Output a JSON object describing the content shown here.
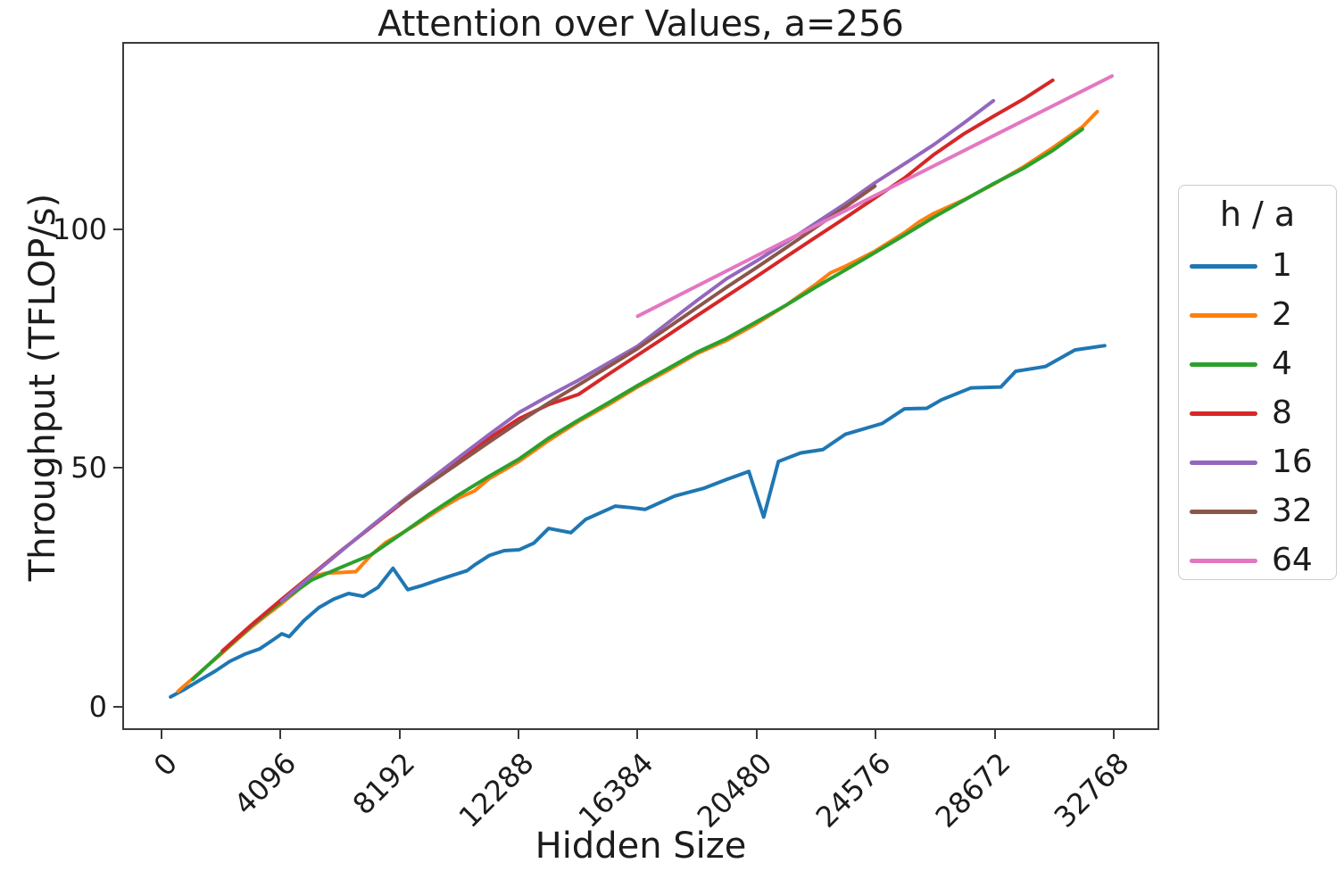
{
  "figure": {
    "title": "Attention over Values, a=256",
    "xlabel": "Hidden Size",
    "ylabel": "Throughput (TFLOP/s)"
  },
  "legend": {
    "title": "h / a",
    "entries": [
      {
        "label": "1",
        "color": "#1f77b4"
      },
      {
        "label": "2",
        "color": "#ff7f0e"
      },
      {
        "label": "4",
        "color": "#2ca02c"
      },
      {
        "label": "8",
        "color": "#d62728"
      },
      {
        "label": "16",
        "color": "#9467bd"
      },
      {
        "label": "32",
        "color": "#8c564b"
      },
      {
        "label": "64",
        "color": "#e377c2"
      }
    ]
  },
  "chart_data": {
    "type": "line",
    "title": "Attention over Values, a=256",
    "xlabel": "Hidden Size",
    "ylabel": "Throughput (TFLOP/s)",
    "xlim": [
      -1351,
      34337
    ],
    "ylim": [
      -4.9,
      139.3
    ],
    "xticks": [
      0,
      4096,
      8192,
      12288,
      16384,
      20480,
      24576,
      28672,
      32768
    ],
    "yticks": [
      0,
      50,
      100
    ],
    "grid": false,
    "legend_title": "h / a",
    "legend_position": "outside-right",
    "line_width": 4,
    "series": [
      {
        "name": "1",
        "color": "#1f77b4",
        "points": [
          [
            256,
            1.7
          ],
          [
            768,
            3.4
          ],
          [
            1280,
            5.3
          ],
          [
            1792,
            7.1
          ],
          [
            2304,
            9.2
          ],
          [
            2816,
            10.7
          ],
          [
            3328,
            11.8
          ],
          [
            3840,
            13.9
          ],
          [
            4096,
            15.0
          ],
          [
            4352,
            14.4
          ],
          [
            4864,
            17.8
          ],
          [
            5376,
            20.5
          ],
          [
            5888,
            22.3
          ],
          [
            6400,
            23.5
          ],
          [
            6912,
            22.9
          ],
          [
            7424,
            24.8
          ],
          [
            7936,
            28.8
          ],
          [
            8448,
            24.3
          ],
          [
            8960,
            25.2
          ],
          [
            9472,
            26.3
          ],
          [
            9984,
            27.3
          ],
          [
            10496,
            28.3
          ],
          [
            10752,
            29.5
          ],
          [
            11264,
            31.5
          ],
          [
            11776,
            32.5
          ],
          [
            12288,
            32.7
          ],
          [
            12800,
            34.1
          ],
          [
            13312,
            37.2
          ],
          [
            14080,
            36.3
          ],
          [
            14592,
            39.1
          ],
          [
            15616,
            41.9
          ],
          [
            16128,
            41.6
          ],
          [
            16640,
            41.2
          ],
          [
            17664,
            44.0
          ],
          [
            18688,
            45.7
          ],
          [
            19456,
            47.5
          ],
          [
            20224,
            49.2
          ],
          [
            20736,
            39.6
          ],
          [
            21248,
            51.3
          ],
          [
            22016,
            53.1
          ],
          [
            22784,
            53.8
          ],
          [
            23552,
            57.0
          ],
          [
            24832,
            59.3
          ],
          [
            25600,
            62.4
          ],
          [
            26368,
            62.5
          ],
          [
            26880,
            64.3
          ],
          [
            27904,
            66.8
          ],
          [
            28928,
            67.0
          ],
          [
            29440,
            70.3
          ],
          [
            30464,
            71.3
          ],
          [
            31488,
            74.8
          ],
          [
            32512,
            75.7
          ]
        ]
      },
      {
        "name": "2",
        "color": "#ff7f0e",
        "points": [
          [
            512,
            2.9
          ],
          [
            1024,
            5.6
          ],
          [
            1536,
            8.3
          ],
          [
            2048,
            11.0
          ],
          [
            2560,
            13.8
          ],
          [
            3072,
            16.5
          ],
          [
            3584,
            19.0
          ],
          [
            4096,
            21.4
          ],
          [
            4608,
            24.0
          ],
          [
            5120,
            27.0
          ],
          [
            5632,
            27.8
          ],
          [
            6144,
            27.9
          ],
          [
            6656,
            28.1
          ],
          [
            7168,
            31.5
          ],
          [
            7680,
            34.2
          ],
          [
            8192,
            36.0
          ],
          [
            8704,
            37.9
          ],
          [
            9216,
            39.9
          ],
          [
            9728,
            41.9
          ],
          [
            10240,
            43.7
          ],
          [
            10752,
            45.1
          ],
          [
            11264,
            47.7
          ],
          [
            11776,
            49.5
          ],
          [
            12288,
            51.3
          ],
          [
            13312,
            55.7
          ],
          [
            14336,
            59.7
          ],
          [
            15360,
            63.2
          ],
          [
            16384,
            67.0
          ],
          [
            17408,
            70.4
          ],
          [
            18432,
            74.0
          ],
          [
            19456,
            76.8
          ],
          [
            20480,
            80.3
          ],
          [
            21504,
            84.2
          ],
          [
            22528,
            88.6
          ],
          [
            23040,
            91.0
          ],
          [
            23552,
            92.4
          ],
          [
            24576,
            95.6
          ],
          [
            25600,
            99.5
          ],
          [
            26112,
            101.8
          ],
          [
            26624,
            103.6
          ],
          [
            27648,
            106.4
          ],
          [
            28672,
            109.7
          ],
          [
            29696,
            113.3
          ],
          [
            30720,
            117.4
          ],
          [
            31744,
            121.8
          ],
          [
            32256,
            125.0
          ]
        ]
      },
      {
        "name": "4",
        "color": "#2ca02c",
        "points": [
          [
            1024,
            5.4
          ],
          [
            2048,
            11.2
          ],
          [
            3072,
            16.8
          ],
          [
            4096,
            21.8
          ],
          [
            5120,
            26.3
          ],
          [
            6144,
            29.0
          ],
          [
            7168,
            31.6
          ],
          [
            8192,
            35.9
          ],
          [
            9216,
            40.3
          ],
          [
            10240,
            44.4
          ],
          [
            11264,
            48.2
          ],
          [
            12288,
            51.8
          ],
          [
            13312,
            56.2
          ],
          [
            14336,
            60.0
          ],
          [
            15360,
            63.6
          ],
          [
            16384,
            67.3
          ],
          [
            17408,
            70.8
          ],
          [
            18432,
            74.3
          ],
          [
            19456,
            77.2
          ],
          [
            20480,
            80.7
          ],
          [
            21504,
            84.2
          ],
          [
            22528,
            88.0
          ],
          [
            23552,
            91.6
          ],
          [
            24576,
            95.3
          ],
          [
            25600,
            99.0
          ],
          [
            26624,
            102.8
          ],
          [
            27648,
            106.3
          ],
          [
            28672,
            109.8
          ],
          [
            29696,
            113.0
          ],
          [
            30720,
            116.8
          ],
          [
            31744,
            121.3
          ]
        ]
      },
      {
        "name": "8",
        "color": "#d62728",
        "points": [
          [
            2048,
            11.4
          ],
          [
            3072,
            17.0
          ],
          [
            4096,
            22.3
          ],
          [
            5120,
            27.4
          ],
          [
            6144,
            32.5
          ],
          [
            7168,
            37.4
          ],
          [
            8192,
            42.3
          ],
          [
            9216,
            47.1
          ],
          [
            10240,
            51.7
          ],
          [
            11264,
            56.2
          ],
          [
            12288,
            60.3
          ],
          [
            13312,
            63.3
          ],
          [
            14336,
            65.4
          ],
          [
            15360,
            69.6
          ],
          [
            16384,
            73.7
          ],
          [
            17408,
            77.8
          ],
          [
            18432,
            82.0
          ],
          [
            19456,
            86.1
          ],
          [
            20480,
            90.2
          ],
          [
            21504,
            94.4
          ],
          [
            22528,
            98.5
          ],
          [
            23552,
            102.6
          ],
          [
            24576,
            106.8
          ],
          [
            25600,
            111.0
          ],
          [
            26624,
            116.0
          ],
          [
            27648,
            120.3
          ],
          [
            28672,
            124.0
          ],
          [
            29696,
            127.6
          ],
          [
            30720,
            131.6
          ]
        ]
      },
      {
        "name": "16",
        "color": "#9467bd",
        "points": [
          [
            4096,
            21.9
          ],
          [
            5120,
            27.2
          ],
          [
            6144,
            32.4
          ],
          [
            7168,
            37.6
          ],
          [
            8192,
            42.6
          ],
          [
            9216,
            47.5
          ],
          [
            10240,
            52.3
          ],
          [
            11264,
            57.0
          ],
          [
            12288,
            61.6
          ],
          [
            13312,
            65.1
          ],
          [
            14336,
            68.4
          ],
          [
            15360,
            72.0
          ],
          [
            16384,
            75.6
          ],
          [
            17408,
            80.4
          ],
          [
            18432,
            85.2
          ],
          [
            19456,
            89.8
          ],
          [
            20480,
            93.5
          ],
          [
            21504,
            97.4
          ],
          [
            22528,
            101.5
          ],
          [
            23552,
            105.6
          ],
          [
            24576,
            110.0
          ],
          [
            25600,
            114.0
          ],
          [
            26624,
            118.1
          ],
          [
            27648,
            122.6
          ],
          [
            28672,
            127.3
          ]
        ]
      },
      {
        "name": "32",
        "color": "#8c564b",
        "points": [
          [
            8192,
            42.4
          ],
          [
            9216,
            46.8
          ],
          [
            10240,
            51.1
          ],
          [
            11264,
            55.4
          ],
          [
            12288,
            59.6
          ],
          [
            13312,
            63.6
          ],
          [
            14336,
            67.4
          ],
          [
            15360,
            71.2
          ],
          [
            16384,
            75.1
          ],
          [
            17408,
            79.4
          ],
          [
            18432,
            83.7
          ],
          [
            19456,
            88.0
          ],
          [
            20480,
            92.1
          ],
          [
            21504,
            96.3
          ],
          [
            22528,
            100.6
          ],
          [
            23552,
            104.9
          ],
          [
            24576,
            109.3
          ]
        ]
      },
      {
        "name": "64",
        "color": "#e377c2",
        "points": [
          [
            16384,
            81.9
          ],
          [
            20480,
            94.6
          ],
          [
            24576,
            107.3
          ],
          [
            28672,
            119.9
          ],
          [
            32768,
            132.5
          ]
        ]
      }
    ]
  }
}
